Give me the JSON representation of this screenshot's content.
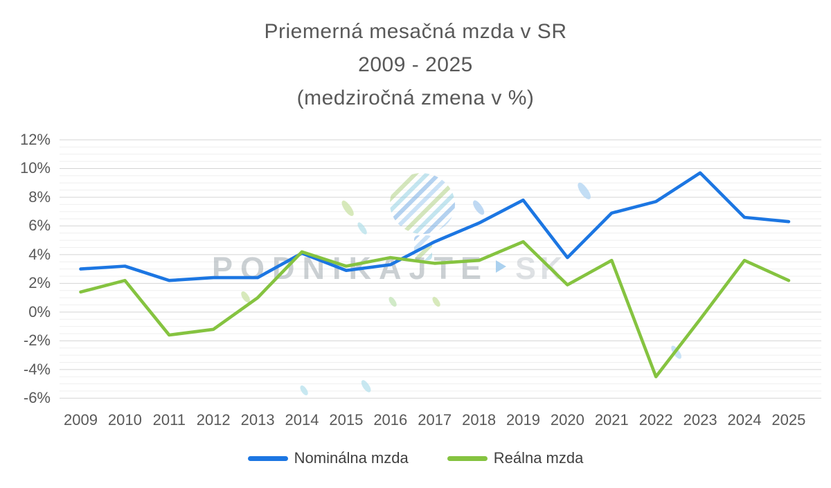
{
  "title": {
    "line1": "Priemerná mesačná mzda v SR",
    "line2": "2009 - 2025",
    "line3": "(medziročná zmena v %)"
  },
  "watermark": {
    "brand": "PODNIKAJTE",
    "suffix": "SK"
  },
  "chart_data": {
    "type": "line",
    "title": "Priemerná mesačná mzda v SR 2009 - 2025 (medziročná zmena v %)",
    "categories": [
      "2009",
      "2010",
      "2011",
      "2012",
      "2013",
      "2014",
      "2015",
      "2016",
      "2017",
      "2018",
      "2019",
      "2020",
      "2021",
      "2022",
      "2023",
      "2024",
      "2025"
    ],
    "series": [
      {
        "name": "Nominálna mzda",
        "data_name": "nominal-wage-line",
        "color": "#1C76E2",
        "values": [
          3.0,
          3.2,
          2.2,
          2.4,
          2.4,
          4.1,
          2.9,
          3.3,
          4.9,
          6.2,
          7.8,
          3.8,
          6.9,
          7.7,
          9.7,
          6.6,
          6.3
        ]
      },
      {
        "name": "Reálna mzda",
        "data_name": "real-wage-line",
        "color": "#85C340",
        "values": [
          1.4,
          2.2,
          -1.6,
          -1.2,
          1.0,
          4.2,
          3.2,
          3.8,
          3.4,
          3.6,
          4.9,
          1.9,
          3.6,
          -4.5,
          -0.5,
          3.6,
          2.2
        ]
      }
    ],
    "xlabel": "",
    "ylabel": "",
    "ylim": [
      -6,
      12
    ],
    "y_major_step": 2,
    "y_minor_step": 0.5,
    "y_tick_labels": [
      "12%",
      "10%",
      "8%",
      "6%",
      "4%",
      "2%",
      "0%",
      "-2%",
      "-4%",
      "-6%"
    ],
    "grid": "major+minor horizontal",
    "legend_position": "bottom"
  },
  "colors": {
    "nominal_blue": "#1C76E2",
    "real_green": "#85C340",
    "grid_major": "#D4D4D4",
    "grid_minor": "#EFEFEF",
    "text_gray": "#595959"
  }
}
